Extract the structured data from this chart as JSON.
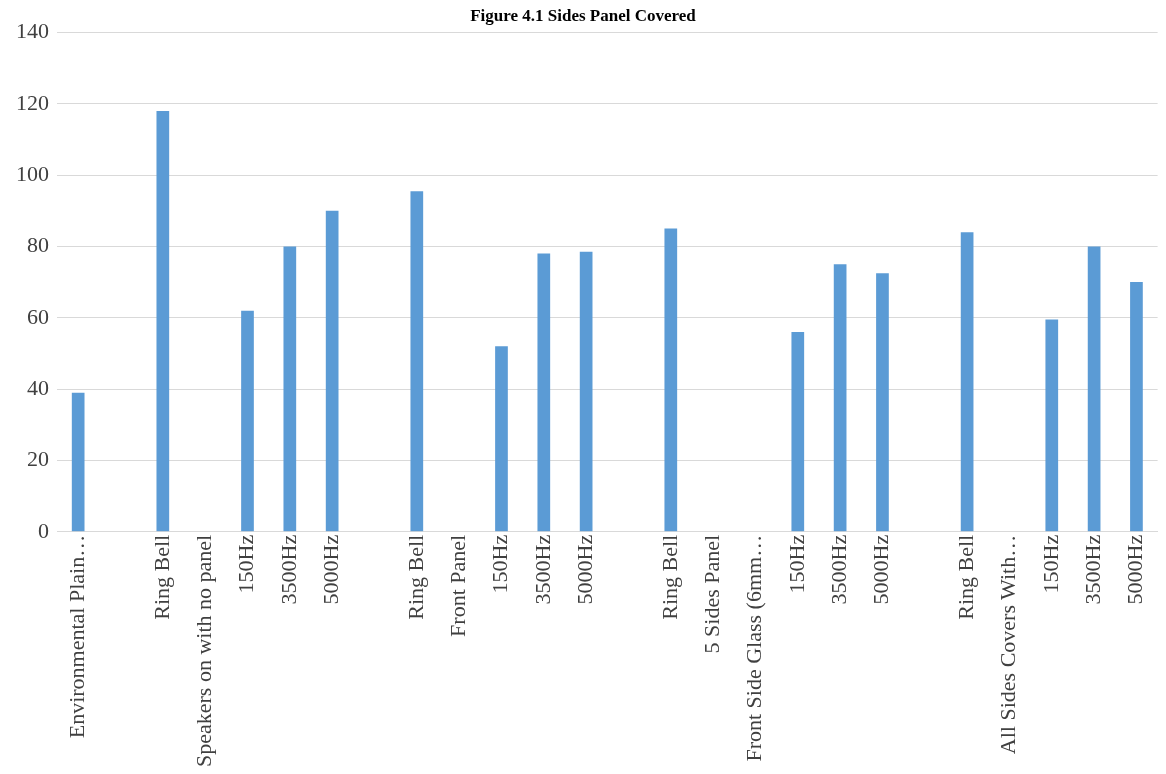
{
  "chart_data": {
    "type": "bar",
    "title": "Figure 4.1 Sides Panel Covered",
    "categories": [
      "Environmental Plain…",
      null,
      "Ring Bell",
      "Speakers on with no panel",
      "150Hz",
      "3500Hz",
      "5000Hz",
      null,
      "Ring Bell",
      "Front Panel",
      "150Hz",
      "3500Hz",
      "5000Hz",
      null,
      "Ring Bell",
      "5 Sides Panel",
      "Front Side Glass (6mm…",
      "150Hz",
      "3500Hz",
      "5000Hz",
      null,
      "Ring Bell",
      "All Sides Covers With…",
      "150Hz",
      "3500Hz",
      "5000Hz"
    ],
    "values": [
      39,
      null,
      118,
      null,
      62,
      80,
      90,
      null,
      95.5,
      null,
      52,
      78,
      78.5,
      null,
      85,
      null,
      null,
      56,
      75,
      72.5,
      null,
      84,
      null,
      59.5,
      80,
      70
    ],
    "color": "#5b9bd5",
    "ylim": [
      0,
      140
    ],
    "yticks": [
      0,
      20,
      40,
      60,
      80,
      100,
      120,
      140
    ],
    "grid": "y",
    "legend": false
  }
}
